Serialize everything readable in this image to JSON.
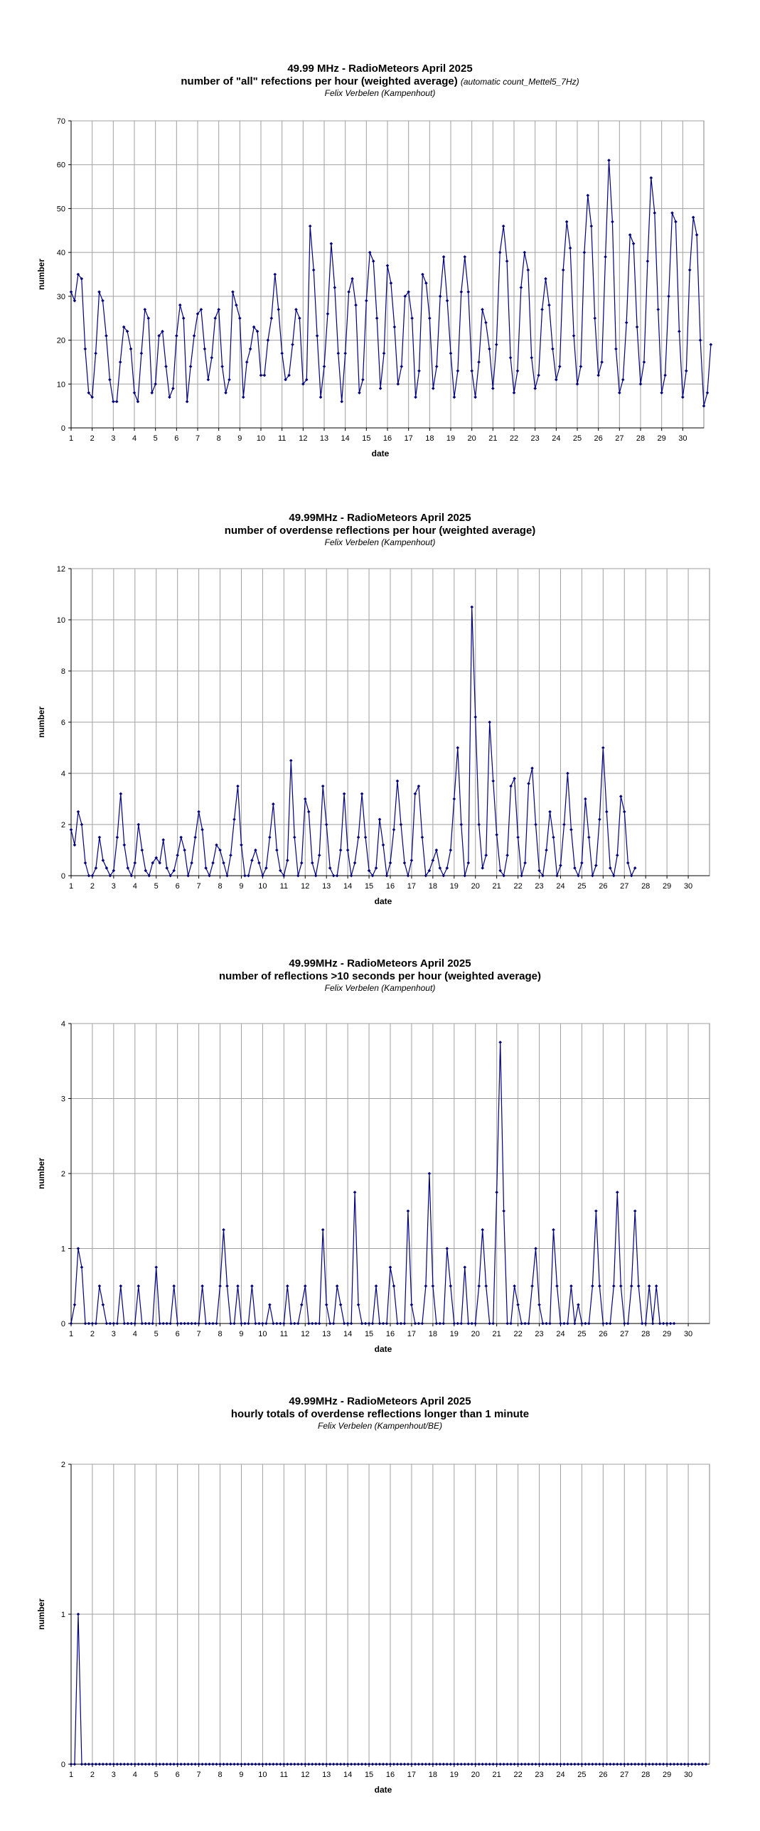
{
  "chart_data": [
    {
      "type": "line",
      "title": "49.99 MHz - RadioMeteors April 2025",
      "subtitle": "number of \"all\" refections per hour (weighted average)",
      "subtitle_note": "(automatic count_Mettel5_7Hz)",
      "author": "Felix Verbelen (Kampenhout)",
      "xlabel": "date",
      "ylabel": "number",
      "ylim": [
        0,
        70
      ],
      "yticks": [
        "0",
        "10",
        "20",
        "30",
        "40",
        "50",
        "60",
        "70"
      ],
      "xticks": [
        "1",
        "2",
        "3",
        "4",
        "5",
        "6",
        "7",
        "8",
        "9",
        "10",
        "11",
        "12",
        "13",
        "14",
        "15",
        "16",
        "17",
        "18",
        "19",
        "20",
        "21",
        "22",
        "23",
        "24",
        "25",
        "26",
        "27",
        "28",
        "29",
        "30"
      ],
      "xlim": [
        1,
        31
      ],
      "grid": true,
      "line_color": "#000080",
      "marker": "diamond",
      "series": [
        {
          "x_start": 1,
          "step": 0.16666667,
          "values": [
            31,
            29,
            35,
            34,
            18,
            8,
            7,
            17,
            31,
            29,
            21,
            11,
            6,
            6,
            15,
            23,
            22,
            18,
            8,
            6,
            17,
            27,
            25,
            8,
            10,
            21,
            22,
            14,
            7,
            9,
            21,
            28,
            25,
            6,
            14,
            21,
            26,
            27,
            18,
            11,
            16,
            25,
            27,
            14,
            8,
            11,
            31,
            28,
            25,
            7,
            15,
            18,
            23,
            22,
            12,
            12,
            20,
            25,
            35,
            27,
            17,
            11,
            12,
            19,
            27,
            25,
            10,
            11,
            46,
            36,
            21,
            7,
            14,
            26,
            42,
            32,
            17,
            6,
            17,
            31,
            34,
            28,
            8,
            11,
            29,
            40,
            38,
            25,
            9,
            17,
            37,
            33,
            23,
            10,
            14,
            30,
            31,
            25,
            7,
            13,
            35,
            33,
            25,
            9,
            14,
            30,
            39,
            29,
            17,
            7,
            13,
            31,
            39,
            31,
            13,
            7,
            15,
            27,
            24,
            18,
            9,
            19,
            40,
            46,
            38,
            16,
            8,
            13,
            32,
            40,
            36,
            16,
            9,
            12,
            27,
            34,
            28,
            18,
            11,
            14,
            36,
            47,
            41,
            21,
            10,
            14,
            40,
            53,
            46,
            25,
            12,
            15,
            39,
            61,
            47,
            18,
            8,
            11,
            24,
            44,
            42,
            23,
            10,
            15,
            38,
            57,
            49,
            27,
            8,
            12,
            30,
            49,
            47,
            22,
            7,
            13,
            36,
            48,
            44,
            20,
            5,
            8,
            19
          ]
        }
      ]
    },
    {
      "type": "line",
      "title": "49.99MHz - RadioMeteors April 2025",
      "subtitle": "number of overdense reflections per hour (weighted average)",
      "author": "Felix Verbelen (Kampenhout)",
      "xlabel": "date",
      "ylabel": "number",
      "ylim": [
        0,
        12
      ],
      "yticks": [
        "0",
        "2",
        "4",
        "6",
        "8",
        "10",
        "12"
      ],
      "xticks": [
        "1",
        "2",
        "3",
        "4",
        "5",
        "6",
        "7",
        "8",
        "9",
        "10",
        "11",
        "12",
        "13",
        "14",
        "15",
        "16",
        "17",
        "18",
        "19",
        "20",
        "21",
        "22",
        "23",
        "24",
        "25",
        "26",
        "27",
        "28",
        "29",
        "30"
      ],
      "xlim": [
        1,
        31
      ],
      "grid": true,
      "line_color": "#000080",
      "marker": "diamond",
      "series": [
        {
          "x_start": 1,
          "step": 0.16666667,
          "values": [
            1.8,
            1.2,
            2.5,
            2.0,
            0.5,
            0,
            0,
            0.3,
            1.5,
            0.6,
            0.3,
            0,
            0.2,
            1.5,
            3.2,
            1.2,
            0.3,
            0,
            0.5,
            2.0,
            1.0,
            0.2,
            0,
            0.5,
            0.7,
            0.5,
            1.4,
            0.3,
            0,
            0.2,
            0.8,
            1.5,
            1.0,
            0,
            0.5,
            1.5,
            2.5,
            1.8,
            0.3,
            0,
            0.5,
            1.2,
            1.0,
            0.5,
            0,
            0.8,
            2.2,
            3.5,
            1.2,
            0,
            0,
            0.6,
            1.0,
            0.5,
            0,
            0.3,
            1.5,
            2.8,
            1.0,
            0.2,
            0,
            0.6,
            4.5,
            1.5,
            0,
            0.5,
            3.0,
            2.5,
            0.5,
            0,
            0.8,
            3.5,
            2.0,
            0.3,
            0,
            0,
            1.0,
            3.2,
            1.0,
            0,
            0.5,
            1.5,
            3.2,
            1.5,
            0.2,
            0,
            0.3,
            2.2,
            1.2,
            0,
            0.5,
            1.8,
            3.7,
            2.0,
            0.5,
            0,
            0.6,
            3.2,
            3.5,
            1.5,
            0,
            0.2,
            0.6,
            1.0,
            0.3,
            0,
            0.3,
            1.0,
            3.0,
            5.0,
            2.0,
            0,
            0.5,
            10.5,
            6.2,
            2.0,
            0.3,
            0.8,
            6.0,
            3.7,
            1.6,
            0.2,
            0,
            0.8,
            3.5,
            3.8,
            1.5,
            0,
            0.5,
            3.6,
            4.2,
            2.0,
            0.2,
            0,
            1.0,
            2.5,
            1.5,
            0,
            0.4,
            2.0,
            4.0,
            1.8,
            0.3,
            0,
            0.5,
            3.0,
            1.5,
            0,
            0.4,
            2.2,
            5.0,
            2.5,
            0.3,
            0,
            0.8,
            3.1,
            2.5,
            0.5,
            0,
            0.3
          ]
        }
      ]
    },
    {
      "type": "line",
      "title": "49.99MHz - RadioMeteors April 2025",
      "subtitle": "number of reflections >10 seconds per hour (weighted average)",
      "author": "Felix Verbelen (Kampenhout)",
      "xlabel": "date",
      "ylabel": "number",
      "ylim": [
        0,
        4
      ],
      "yticks": [
        "0",
        "1",
        "2",
        "3",
        "4"
      ],
      "xticks": [
        "1",
        "2",
        "3",
        "4",
        "5",
        "6",
        "7",
        "8",
        "9",
        "10",
        "11",
        "12",
        "13",
        "14",
        "15",
        "16",
        "17",
        "18",
        "19",
        "20",
        "21",
        "22",
        "23",
        "24",
        "25",
        "26",
        "27",
        "28",
        "29",
        "30"
      ],
      "xlim": [
        1,
        31
      ],
      "grid": true,
      "line_color": "#000080",
      "marker": "diamond",
      "series": [
        {
          "x_start": 1,
          "step": 0.16666667,
          "values": [
            0,
            0.25,
            1.0,
            0.75,
            0,
            0,
            0,
            0,
            0.5,
            0.25,
            0,
            0,
            0,
            0,
            0.5,
            0,
            0,
            0,
            0,
            0.5,
            0,
            0,
            0,
            0,
            0.75,
            0,
            0,
            0,
            0,
            0.5,
            0,
            0,
            0,
            0,
            0,
            0,
            0,
            0.5,
            0,
            0,
            0,
            0,
            0.5,
            1.25,
            0.5,
            0,
            0,
            0.5,
            0,
            0,
            0,
            0.5,
            0,
            0,
            0,
            0,
            0.25,
            0,
            0,
            0,
            0,
            0.5,
            0,
            0,
            0,
            0.25,
            0.5,
            0,
            0,
            0,
            0,
            1.25,
            0.25,
            0,
            0,
            0.5,
            0.25,
            0,
            0,
            0,
            1.75,
            0.25,
            0,
            0,
            0,
            0,
            0.5,
            0,
            0,
            0,
            0.75,
            0.5,
            0,
            0,
            0,
            1.5,
            0.25,
            0,
            0,
            0,
            0.5,
            2.0,
            0.5,
            0,
            0,
            0,
            1.0,
            0.5,
            0,
            0,
            0,
            0.75,
            0,
            0,
            0,
            0.5,
            1.25,
            0.5,
            0,
            0,
            1.75,
            3.75,
            1.5,
            0,
            0,
            0.5,
            0.25,
            0,
            0,
            0,
            0.5,
            1.0,
            0.25,
            0,
            0,
            0,
            1.25,
            0.5,
            0,
            0,
            0,
            0.5,
            0,
            0.25,
            0,
            0,
            0,
            0.5,
            1.5,
            0.5,
            0,
            0,
            0,
            0.5,
            1.75,
            0.5,
            0,
            0,
            0.5,
            1.5,
            0.5,
            0,
            0,
            0.5,
            0,
            0.5,
            0,
            0,
            0,
            0,
            0
          ]
        }
      ]
    },
    {
      "type": "line",
      "title": "49.99MHz - RadioMeteors April 2025",
      "subtitle": "hourly totals of overdense reflections longer than 1 minute",
      "author": "Felix Verbelen (Kampenhout/BE)",
      "xlabel": "date",
      "ylabel": "number",
      "ylim": [
        0,
        2
      ],
      "yticks": [
        "0",
        "1",
        "2"
      ],
      "xticks": [
        "1",
        "2",
        "3",
        "4",
        "5",
        "6",
        "7",
        "8",
        "9",
        "10",
        "11",
        "12",
        "13",
        "14",
        "15",
        "16",
        "17",
        "18",
        "19",
        "20",
        "21",
        "22",
        "23",
        "24",
        "25",
        "26",
        "27",
        "28",
        "29",
        "30"
      ],
      "xlim": [
        1,
        31
      ],
      "grid": true,
      "line_color": "#000080",
      "marker": "diamond",
      "series": [
        {
          "x_start": 1,
          "step": 0.16666667,
          "values": [
            0,
            0,
            1,
            0,
            0,
            0,
            0,
            0,
            0,
            0,
            0,
            0,
            0,
            0,
            0,
            0,
            0,
            0,
            0,
            0,
            0,
            0,
            0,
            0,
            0,
            0,
            0,
            0,
            0,
            0,
            0,
            0,
            0,
            0,
            0,
            0,
            0,
            0,
            0,
            0,
            0,
            0,
            0,
            0,
            0,
            0,
            0,
            0,
            0,
            0,
            0,
            0,
            0,
            0,
            0,
            0,
            0,
            0,
            0,
            0,
            0,
            0,
            0,
            0,
            0,
            0,
            0,
            0,
            0,
            0,
            0,
            0,
            0,
            0,
            0,
            0,
            0,
            0,
            0,
            0,
            0,
            0,
            0,
            0,
            0,
            0,
            0,
            0,
            0,
            0,
            0,
            0,
            0,
            0,
            0,
            0,
            0,
            0,
            0,
            0,
            0,
            0,
            0,
            0,
            0,
            0,
            0,
            0,
            0,
            0,
            0,
            0,
            0,
            0,
            0,
            0,
            0,
            0,
            0,
            0,
            0,
            0,
            0,
            0,
            0,
            0,
            0,
            0,
            0,
            0,
            0,
            0,
            0,
            0,
            0,
            0,
            0,
            0,
            0,
            0,
            0,
            0,
            0,
            0,
            0,
            0,
            0,
            0,
            0,
            0,
            0,
            0,
            0,
            0,
            0,
            0,
            0,
            0,
            0,
            0,
            0,
            0,
            0,
            0,
            0,
            0,
            0,
            0,
            0,
            0,
            0,
            0,
            0,
            0,
            0,
            0,
            0,
            0,
            0,
            0
          ]
        }
      ]
    }
  ]
}
